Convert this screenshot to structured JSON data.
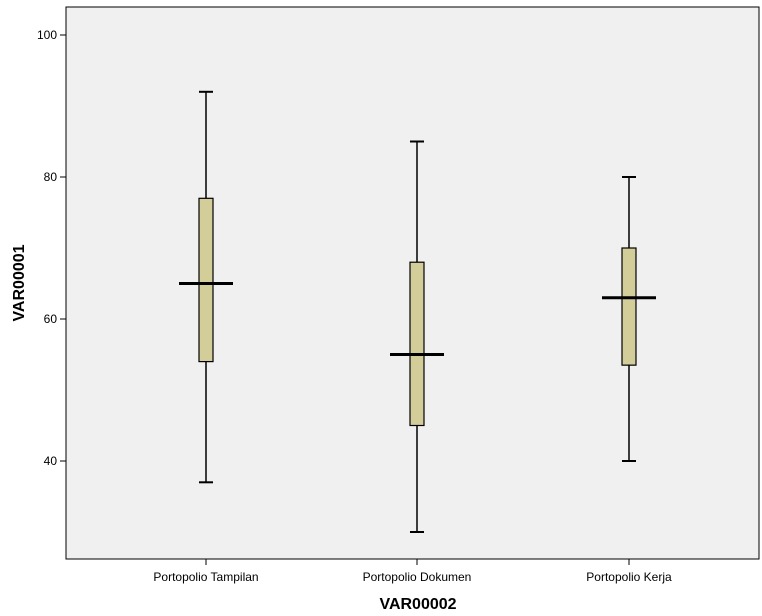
{
  "chart_data": {
    "type": "boxplot",
    "title": "",
    "xlabel": "VAR00002",
    "ylabel": "VAR00001",
    "ylim": [
      26,
      104
    ],
    "yticks": [
      40,
      60,
      80,
      100
    ],
    "grid": false,
    "colors": {
      "plot_background": "#f0f0f0",
      "box_fill": "#d3cd9a",
      "line": "#000000"
    },
    "categories": [
      "Portopolio Tampilan",
      "Portopolio Dokumen",
      "Portopolio Kerja"
    ],
    "boxes": [
      {
        "category": "Portopolio Tampilan",
        "min": 37,
        "q1": 54,
        "median": 65,
        "q3": 77,
        "max": 92
      },
      {
        "category": "Portopolio Dokumen",
        "min": 30,
        "q1": 45,
        "median": 55,
        "q3": 68,
        "max": 85
      },
      {
        "category": "Portopolio Kerja",
        "min": 40,
        "q1": 53.5,
        "median": 63,
        "q3": 70,
        "max": 80
      }
    ]
  }
}
